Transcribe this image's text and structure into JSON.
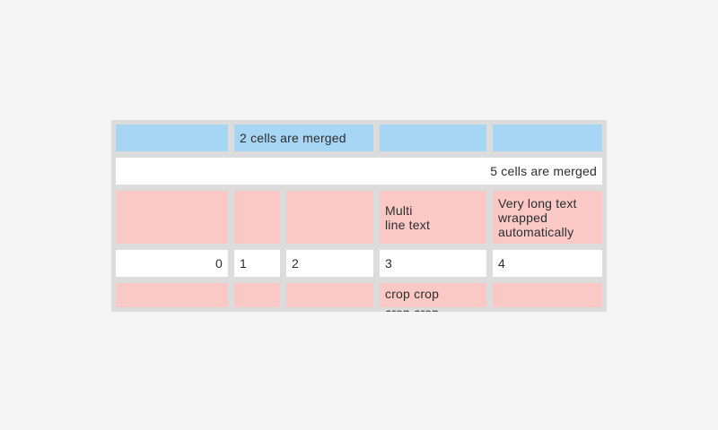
{
  "colors": {
    "page_background": "#f5f5f5",
    "table_background": "#dcdcdc",
    "blue_cell": "#a6d6f4",
    "pink_cell": "#fac9c6",
    "white_cell": "#ffffff",
    "text": "#2d2d2d"
  },
  "table": {
    "row1": {
      "merged_label": "2 cells are merged"
    },
    "row2": {
      "merged_label": "5 cells are merged"
    },
    "row3": {
      "multi_line_label": "Multi\nline text",
      "wrapped_label": "Very long text wrapped automatically"
    },
    "row4": {
      "values": [
        "0",
        "1",
        "2",
        "3",
        "4"
      ]
    },
    "row5": {
      "crop_label": "crop crop\ncrop crop"
    }
  }
}
